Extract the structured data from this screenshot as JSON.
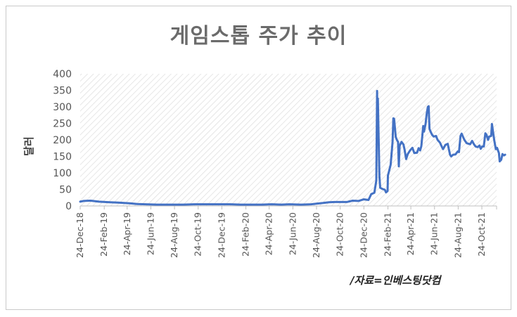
{
  "chart_data": {
    "type": "line",
    "title": "게임스톱 주가 추이",
    "ylabel": "달러",
    "xlabel": "",
    "source_note": "/자료=인베스팅닷컴",
    "ylim": [
      0,
      400
    ],
    "yticks": [
      0,
      50,
      100,
      150,
      200,
      250,
      300,
      350,
      400
    ],
    "xlim": [
      "2018-12-24",
      "2021-12-01"
    ],
    "xtick_labels": [
      "24-Dec-18",
      "24-Feb-19",
      "24-Apr-19",
      "24-Jun-19",
      "24-Aug-19",
      "24-Oct-19",
      "24-Dec-19",
      "24-Feb-20",
      "24-Apr-20",
      "24-Jun-20",
      "24-Aug-20",
      "24-Oct-20",
      "24-Dec-20",
      "24-Feb-21",
      "24-Apr-21",
      "24-Jun-21",
      "24-Aug-21",
      "24-Oct-21"
    ],
    "xtick_dates": [
      "2018-12-24",
      "2019-02-24",
      "2019-04-24",
      "2019-06-24",
      "2019-08-24",
      "2019-10-24",
      "2019-12-24",
      "2020-02-24",
      "2020-04-24",
      "2020-06-24",
      "2020-08-24",
      "2020-10-24",
      "2020-12-24",
      "2021-02-24",
      "2021-04-24",
      "2021-06-24",
      "2021-08-24",
      "2021-10-24"
    ],
    "grid": "diagonal-hatch",
    "series": [
      {
        "color": "#4472c4",
        "points": [
          [
            "2018-12-24",
            13
          ],
          [
            "2019-01-02",
            15
          ],
          [
            "2019-01-20",
            16
          ],
          [
            "2019-02-10",
            13
          ],
          [
            "2019-03-10",
            11
          ],
          [
            "2019-04-01",
            10
          ],
          [
            "2019-05-01",
            8
          ],
          [
            "2019-05-20",
            6
          ],
          [
            "2019-06-10",
            5
          ],
          [
            "2019-07-10",
            4
          ],
          [
            "2019-08-15",
            4
          ],
          [
            "2019-09-15",
            4
          ],
          [
            "2019-10-15",
            5
          ],
          [
            "2019-11-15",
            5
          ],
          [
            "2019-12-15",
            5
          ],
          [
            "2020-01-15",
            5
          ],
          [
            "2020-02-10",
            4
          ],
          [
            "2020-03-10",
            4
          ],
          [
            "2020-04-05",
            4
          ],
          [
            "2020-05-01",
            5
          ],
          [
            "2020-05-25",
            4
          ],
          [
            "2020-06-15",
            5
          ],
          [
            "2020-07-15",
            4
          ],
          [
            "2020-08-10",
            5
          ],
          [
            "2020-08-24",
            7
          ],
          [
            "2020-09-10",
            9
          ],
          [
            "2020-09-25",
            11
          ],
          [
            "2020-10-10",
            12
          ],
          [
            "2020-10-25",
            12
          ],
          [
            "2020-11-10",
            12
          ],
          [
            "2020-11-25",
            16
          ],
          [
            "2020-12-10",
            15
          ],
          [
            "2020-12-24",
            20
          ],
          [
            "2021-01-05",
            18
          ],
          [
            "2021-01-12",
            36
          ],
          [
            "2021-01-20",
            40
          ],
          [
            "2021-01-25",
            77
          ],
          [
            "2021-01-27",
            348
          ],
          [
            "2021-01-28",
            194
          ],
          [
            "2021-01-29",
            325
          ],
          [
            "2021-02-02",
            90
          ],
          [
            "2021-02-04",
            55
          ],
          [
            "2021-02-09",
            52
          ],
          [
            "2021-02-16",
            49
          ],
          [
            "2021-02-19",
            41
          ],
          [
            "2021-02-23",
            45
          ],
          [
            "2021-02-24",
            92
          ],
          [
            "2021-02-26",
            101
          ],
          [
            "2021-03-03",
            125
          ],
          [
            "2021-03-08",
            194
          ],
          [
            "2021-03-10",
            265
          ],
          [
            "2021-03-12",
            264
          ],
          [
            "2021-03-16",
            209
          ],
          [
            "2021-03-19",
            200
          ],
          [
            "2021-03-22",
            194
          ],
          [
            "2021-03-24",
            120
          ],
          [
            "2021-03-26",
            182
          ],
          [
            "2021-03-31",
            194
          ],
          [
            "2021-04-05",
            186
          ],
          [
            "2021-04-08",
            170
          ],
          [
            "2021-04-12",
            142
          ],
          [
            "2021-04-16",
            157
          ],
          [
            "2021-04-22",
            168
          ],
          [
            "2021-04-28",
            176
          ],
          [
            "2021-05-03",
            160
          ],
          [
            "2021-05-10",
            161
          ],
          [
            "2021-05-14",
            175
          ],
          [
            "2021-05-18",
            168
          ],
          [
            "2021-05-21",
            181
          ],
          [
            "2021-05-26",
            242
          ],
          [
            "2021-05-28",
            225
          ],
          [
            "2021-06-01",
            248
          ],
          [
            "2021-06-04",
            280
          ],
          [
            "2021-06-07",
            300
          ],
          [
            "2021-06-09",
            302
          ],
          [
            "2021-06-11",
            233
          ],
          [
            "2021-06-15",
            222
          ],
          [
            "2021-06-18",
            215
          ],
          [
            "2021-06-22",
            210
          ],
          [
            "2021-06-28",
            212
          ],
          [
            "2021-07-02",
            200
          ],
          [
            "2021-07-08",
            192
          ],
          [
            "2021-07-13",
            179
          ],
          [
            "2021-07-16",
            172
          ],
          [
            "2021-07-22",
            185
          ],
          [
            "2021-07-28",
            188
          ],
          [
            "2021-08-03",
            155
          ],
          [
            "2021-08-06",
            150
          ],
          [
            "2021-08-11",
            155
          ],
          [
            "2021-08-17",
            156
          ],
          [
            "2021-08-23",
            165
          ],
          [
            "2021-08-26",
            163
          ],
          [
            "2021-08-30",
            212
          ],
          [
            "2021-09-02",
            219
          ],
          [
            "2021-09-07",
            205
          ],
          [
            "2021-09-10",
            198
          ],
          [
            "2021-09-15",
            190
          ],
          [
            "2021-09-20",
            188
          ],
          [
            "2021-09-24",
            187
          ],
          [
            "2021-09-29",
            197
          ],
          [
            "2021-10-04",
            186
          ],
          [
            "2021-10-08",
            180
          ],
          [
            "2021-10-13",
            178
          ],
          [
            "2021-10-18",
            183
          ],
          [
            "2021-10-21",
            173
          ],
          [
            "2021-10-25",
            180
          ],
          [
            "2021-10-29",
            180
          ],
          [
            "2021-11-02",
            220
          ],
          [
            "2021-11-05",
            215
          ],
          [
            "2021-11-09",
            200
          ],
          [
            "2021-11-12",
            210
          ],
          [
            "2021-11-17",
            212
          ],
          [
            "2021-11-19",
            248
          ],
          [
            "2021-11-22",
            223
          ],
          [
            "2021-11-25",
            198
          ],
          [
            "2021-11-29",
            172
          ],
          [
            "2021-12-02",
            176
          ],
          [
            "2021-12-07",
            160
          ],
          [
            "2021-12-09",
            135
          ],
          [
            "2021-12-13",
            140
          ],
          [
            "2021-12-16",
            157
          ],
          [
            "2021-12-20",
            153
          ],
          [
            "2021-12-23",
            155
          ]
        ]
      }
    ]
  }
}
